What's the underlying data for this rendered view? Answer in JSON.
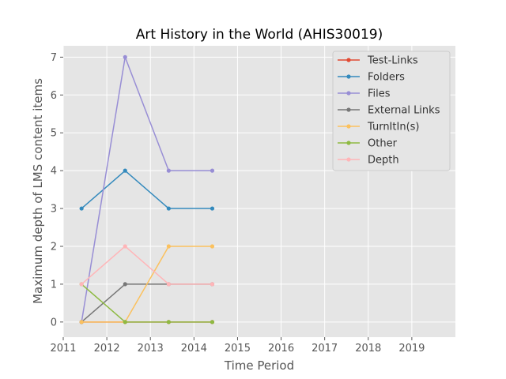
{
  "chart_data": {
    "type": "line",
    "title": "Art History in the World (AHIS30019)",
    "xlabel": "Time Period",
    "ylabel": "Maximum depth of LMS content items",
    "xlim": [
      2011,
      2020
    ],
    "ylim": [
      -0.4,
      7.3
    ],
    "x_ticks": [
      "2011",
      "2012",
      "2013",
      "2014",
      "2015",
      "2016",
      "2017",
      "2018",
      "2019"
    ],
    "y_ticks": [
      "0",
      "1",
      "2",
      "3",
      "4",
      "5",
      "6",
      "7"
    ],
    "x": [
      2011.42,
      2012.42,
      2013.42,
      2014.42
    ],
    "grid": true,
    "legend_position": "top-right",
    "series": [
      {
        "name": "Test-Links",
        "color": "#e24a33",
        "values": [
          0,
          0,
          0,
          0
        ]
      },
      {
        "name": "Folders",
        "color": "#348abd",
        "values": [
          3,
          4,
          3,
          3
        ]
      },
      {
        "name": "Files",
        "color": "#988ed5",
        "values": [
          0,
          7,
          4,
          4
        ]
      },
      {
        "name": "External Links",
        "color": "#777777",
        "values": [
          0,
          1,
          1,
          1
        ]
      },
      {
        "name": "TurnItIn(s)",
        "color": "#fbc15e",
        "values": [
          0,
          0,
          2,
          2
        ]
      },
      {
        "name": "Other",
        "color": "#8eba42",
        "values": [
          1,
          0,
          0,
          0
        ]
      },
      {
        "name": "Depth",
        "color": "#ffb5b8",
        "values": [
          1,
          2,
          1,
          1
        ]
      }
    ]
  }
}
